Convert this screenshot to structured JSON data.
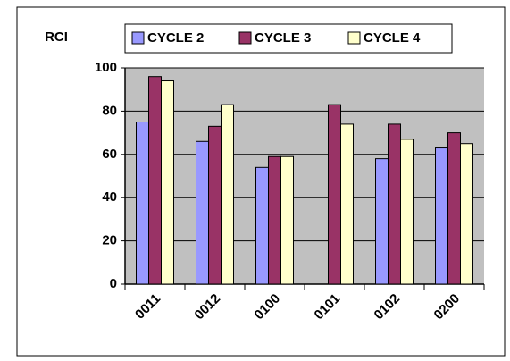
{
  "chart_data": {
    "type": "bar",
    "ylabel": "RCI",
    "categories": [
      "0011",
      "0012",
      "0100",
      "0101",
      "0102",
      "0200"
    ],
    "series": [
      {
        "name": "CYCLE 2",
        "color": "#9999ff",
        "values": [
          75,
          66,
          54,
          null,
          58,
          63
        ]
      },
      {
        "name": "CYCLE 3",
        "color": "#993366",
        "values": [
          96,
          73,
          59,
          83,
          74,
          70
        ]
      },
      {
        "name": "CYCLE 4",
        "color": "#ffffcc",
        "values": [
          94,
          83,
          59,
          74,
          67,
          65
        ]
      }
    ],
    "ylim": [
      0,
      100
    ],
    "yticks": [
      0,
      20,
      40,
      60,
      80,
      100
    ],
    "grid": true
  }
}
